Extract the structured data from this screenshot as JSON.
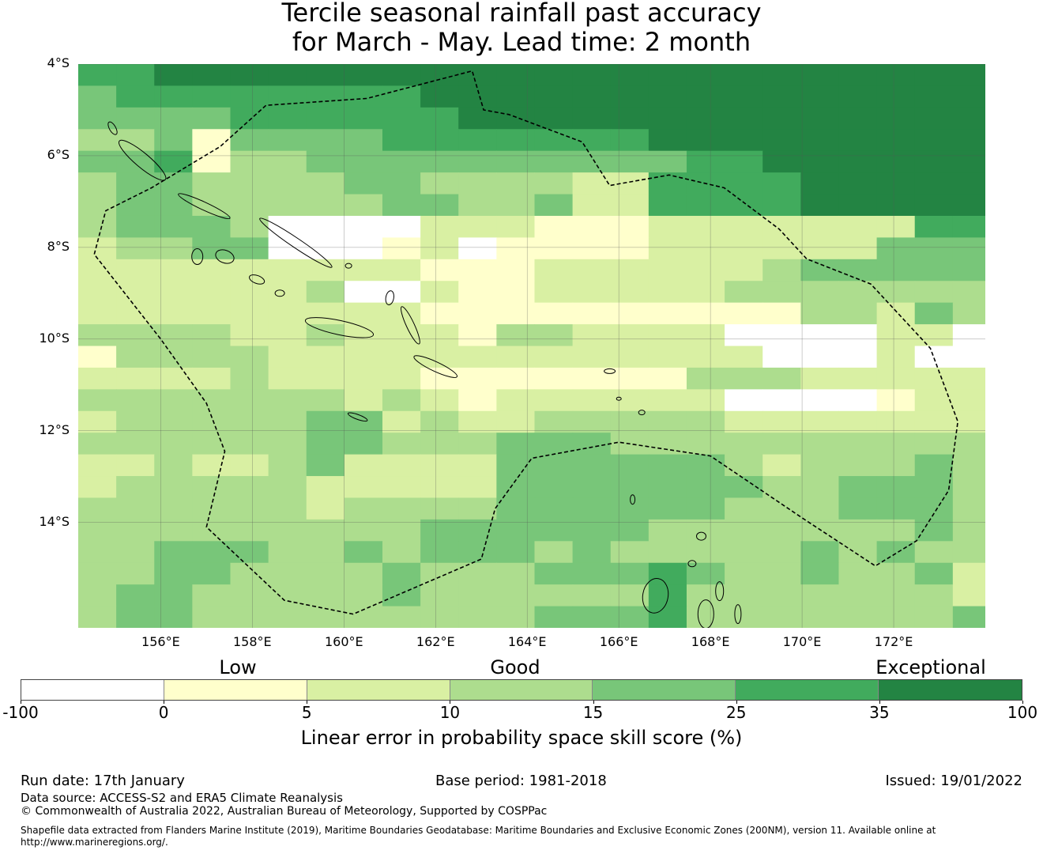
{
  "title": {
    "line1": "Tercile seasonal rainfall past accuracy",
    "line2": "for March - May. Lead time: 2 month"
  },
  "map": {
    "lat_labels": [
      "4°S",
      "6°S",
      "8°S",
      "10°S",
      "12°S",
      "14°S"
    ],
    "lon_labels": [
      "156°E",
      "158°E",
      "160°E",
      "162°E",
      "164°E",
      "166°E",
      "168°E",
      "170°E",
      "172°E"
    ],
    "extent": {
      "lon_min": 154.2,
      "lon_max": 174.0,
      "lat_min": -16.3,
      "lat_max": -4.0
    },
    "cell_size_deg": 0.83,
    "grid_rows": [
      "5566666666666666666666666",
      "4555555556666666666666666",
      "4444555555666666666666666",
      "3341444455555556666666666",
      "4451334444444444556666666",
      "3443333443333225555666666",
      "3443333344334225555666666",
      "3444300002221112222222555",
      "2334400012011112222224444",
      "2222222221112222223444444",
      "2222223002112222233333333",
      "2222222221111111111332433",
      "3333223222133222200002200",
      "1333322222222222220002001",
      "2222322221111111333222222",
      "3333333232122222200001222",
      "2333334423223333322222223",
      "3333334433344433333333334",
      "2232234222244444432333433",
      "2333332222244444443344433",
      "3333332333344444433344433",
      "3333333334444443333333433",
      "3344433434443433333434333",
      "3344333343334445433433423",
      "3443333343333335333333323",
      "3443333333334445333333343"
    ],
    "eez_boundary": [
      [
        154.55,
        -8.15
      ],
      [
        154.8,
        -7.2
      ],
      [
        155.8,
        -6.7
      ],
      [
        157.3,
        -5.8
      ],
      [
        158.3,
        -4.9
      ],
      [
        160.5,
        -4.75
      ],
      [
        162.8,
        -4.15
      ],
      [
        163.05,
        -5.0
      ],
      [
        163.6,
        -5.1
      ],
      [
        165.2,
        -5.7
      ],
      [
        165.8,
        -6.65
      ],
      [
        167.1,
        -6.42
      ],
      [
        168.3,
        -6.7
      ],
      [
        169.5,
        -7.6
      ],
      [
        170.1,
        -8.25
      ],
      [
        171.5,
        -8.8
      ],
      [
        172.8,
        -10.2
      ],
      [
        173.4,
        -11.8
      ],
      [
        173.2,
        -13.3
      ],
      [
        172.5,
        -14.4
      ],
      [
        171.6,
        -14.95
      ],
      [
        170.0,
        -13.9
      ],
      [
        168.0,
        -12.55
      ],
      [
        166.0,
        -12.25
      ],
      [
        164.1,
        -12.6
      ],
      [
        163.3,
        -13.7
      ],
      [
        163.0,
        -14.8
      ],
      [
        160.2,
        -16.0
      ],
      [
        158.7,
        -15.7
      ],
      [
        157.0,
        -14.1
      ],
      [
        157.4,
        -12.45
      ],
      [
        157.0,
        -11.4
      ],
      [
        156.0,
        -10.0
      ],
      [
        154.55,
        -8.15
      ]
    ],
    "colors": {
      "exceptional_dark": "#238443",
      "exceptional": "#41ab5d",
      "good_high": "#78c679",
      "good": "#addd8e",
      "low_high": "#d9f0a3",
      "low": "#ffffcc",
      "none": "#ffffff"
    }
  },
  "colorbar": {
    "category_labels": [
      "Low",
      "Good",
      "Exceptional"
    ],
    "ticks": [
      "-100",
      "0",
      "5",
      "10",
      "15",
      "25",
      "35",
      "100"
    ],
    "segment_colors": [
      "#ffffff",
      "#ffffcc",
      "#d9f0a3",
      "#addd8e",
      "#78c679",
      "#41ab5d",
      "#238443"
    ],
    "label": "Linear error in probability space skill score (%)"
  },
  "footer": {
    "run_date": "Run date: 17th January",
    "base_period": "Base period: 1981-2018",
    "issued": "Issued: 19/01/2022",
    "data_source": "Data source: ACCESS-S2 and ERA5 Climate Reanalysis",
    "copyright": "© Commonwealth of Australia 2022, Australian Bureau of Meteorology, Supported by COSPPac",
    "shapefile_line1": "Shapefile data extracted from Flanders Marine Institute (2019), Maritime Boundaries Geodatabase: Maritime Boundaries and Exclusive Economic Zones (200NM), version 11. Available online at",
    "shapefile_line2": "http://www.marineregions.org/."
  }
}
